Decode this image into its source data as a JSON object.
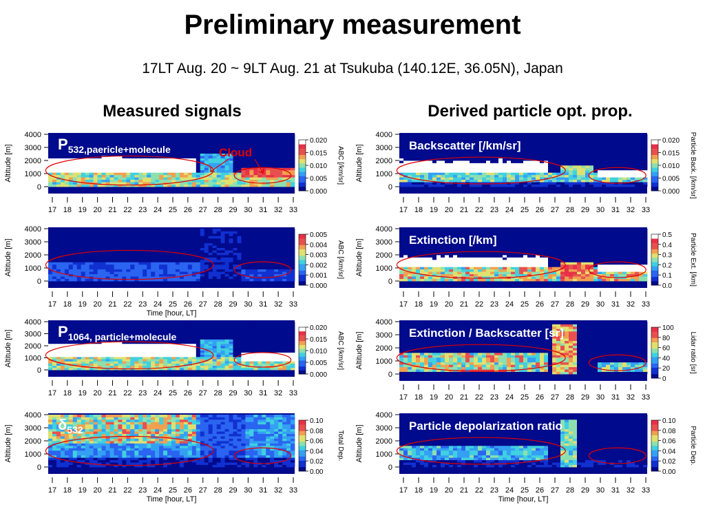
{
  "title": "Preliminary measurement",
  "subtitle": "17LT Aug. 20 ~ 9LT Aug. 21 at Tsukuba (140.12E, 36.05N), Japan",
  "left_heading": "Measured signals",
  "right_heading": "Derived particle opt. prop.",
  "cloud_annotation": "Cloud",
  "chart_data": [
    {
      "id": "p532",
      "type": "heatmap",
      "column": "left",
      "overlay_label": "P",
      "overlay_label_sub": "532,paericle+molecule",
      "xlabel": "",
      "ylabel": "Altitude [m]",
      "x_ticks": [
        "17",
        "18",
        "19",
        "20",
        "21",
        "22",
        "23",
        "24",
        "25",
        "26",
        "27",
        "28",
        "29",
        "30",
        "31",
        "32",
        "33"
      ],
      "y_ticks": [
        "0",
        "1000",
        "2000",
        "3000",
        "4000"
      ],
      "ylim": [
        0,
        4000
      ],
      "colorbar_label": "ABC [/km/sr]",
      "colorbar_ticks": [
        "0.000",
        "0.005",
        "0.010",
        "0.015",
        "0.020"
      ],
      "color_scale": "rainbow-white-max",
      "annotations": [
        "cloud ellipse 17-27 LT, 1000-2000 m",
        "cloud ellipse 30-33 LT, 500-1500 m"
      ]
    },
    {
      "id": "p532_clean",
      "type": "heatmap",
      "column": "left",
      "overlay_label": "",
      "overlay_label_sub": "",
      "xlabel": "Time [hour, LT]",
      "ylabel": "Altitude [m]",
      "x_ticks": [
        "17",
        "18",
        "19",
        "20",
        "21",
        "22",
        "23",
        "24",
        "25",
        "26",
        "27",
        "28",
        "29",
        "30",
        "31",
        "32",
        "33"
      ],
      "y_ticks": [
        "0",
        "1000",
        "2000",
        "3000",
        "4000"
      ],
      "ylim": [
        0,
        4000
      ],
      "colorbar_label": "ABC [/km/sr]",
      "colorbar_ticks": [
        "0.000",
        "0.001",
        "0.002",
        "0.003",
        "0.004",
        "0.005"
      ],
      "color_scale": "rainbow"
    },
    {
      "id": "p1064",
      "type": "heatmap",
      "column": "left",
      "overlay_label": "P",
      "overlay_label_sub": "1064, particle+molecule",
      "xlabel": "",
      "ylabel": "Altitude [m]",
      "x_ticks": [
        "17",
        "18",
        "19",
        "20",
        "21",
        "22",
        "23",
        "24",
        "25",
        "26",
        "27",
        "28",
        "29",
        "30",
        "31",
        "32",
        "33"
      ],
      "y_ticks": [
        "0",
        "1000",
        "2000",
        "3000",
        "4000"
      ],
      "ylim": [
        0,
        4000
      ],
      "colorbar_label": "ABC [/km/sr]",
      "colorbar_ticks": [
        "0.000",
        "0.005",
        "0.010",
        "0.015",
        "0.020"
      ],
      "color_scale": "rainbow-white-max"
    },
    {
      "id": "delta532",
      "type": "heatmap",
      "column": "left",
      "overlay_label": "δ",
      "overlay_label_sub": "532",
      "xlabel": "Time [hour, LT]",
      "ylabel": "Altitude [m]",
      "x_ticks": [
        "17",
        "18",
        "19",
        "20",
        "21",
        "22",
        "23",
        "24",
        "25",
        "26",
        "27",
        "28",
        "29",
        "30",
        "31",
        "32",
        "33"
      ],
      "y_ticks": [
        "0",
        "1000",
        "2000",
        "3000",
        "4000"
      ],
      "ylim": [
        0,
        4000
      ],
      "colorbar_label": "Total Dep.",
      "colorbar_ticks": [
        "0.00",
        "0.02",
        "0.04",
        "0.06",
        "0.08",
        "0.10"
      ],
      "color_scale": "rainbow"
    },
    {
      "id": "backscatter",
      "type": "heatmap",
      "column": "right",
      "overlay_label": "Backscatter [/km/sr]",
      "overlay_label_sub": "",
      "xlabel": "",
      "ylabel": "Altitude [m]",
      "x_ticks": [
        "17",
        "18",
        "19",
        "20",
        "21",
        "22",
        "23",
        "24",
        "25",
        "26",
        "27",
        "28",
        "29",
        "30",
        "31",
        "32",
        "33"
      ],
      "y_ticks": [
        "0",
        "1000",
        "2000",
        "3000",
        "4000"
      ],
      "ylim": [
        0,
        4000
      ],
      "colorbar_label": "Particle Back. [/km/sr]",
      "colorbar_ticks": [
        "0.000",
        "0.005",
        "0.010",
        "0.015",
        "0.020"
      ],
      "color_scale": "rainbow-white-max"
    },
    {
      "id": "extinction",
      "type": "heatmap",
      "column": "right",
      "overlay_label": "Extinction [/km]",
      "overlay_label_sub": "",
      "xlabel": "",
      "ylabel": "Altitude [m]",
      "x_ticks": [
        "17",
        "18",
        "19",
        "20",
        "21",
        "22",
        "23",
        "24",
        "25",
        "26",
        "27",
        "28",
        "29",
        "30",
        "31",
        "32",
        "33"
      ],
      "y_ticks": [
        "0",
        "1000",
        "2000",
        "3000",
        "4000"
      ],
      "ylim": [
        0,
        4000
      ],
      "colorbar_label": "Particle Ext. [/km]",
      "colorbar_ticks": [
        "0.0",
        "0.1",
        "0.2",
        "0.3",
        "0.4",
        "0.5"
      ],
      "color_scale": "rainbow-white-max"
    },
    {
      "id": "lidar_ratio",
      "type": "heatmap",
      "column": "right",
      "overlay_label": "Extinction / Backscatter [sr]",
      "overlay_label_sub": "",
      "xlabel": "",
      "ylabel": "Altitude [m]",
      "x_ticks": [
        "17",
        "18",
        "19",
        "20",
        "21",
        "22",
        "23",
        "24",
        "25",
        "26",
        "27",
        "28",
        "29",
        "30",
        "31",
        "32",
        "33"
      ],
      "y_ticks": [
        "0",
        "1000",
        "2000",
        "3000",
        "4000"
      ],
      "ylim": [
        0,
        4000
      ],
      "colorbar_label": "Lidar ratio [sr]",
      "colorbar_ticks": [
        "0",
        "20",
        "40",
        "60",
        "80",
        "100"
      ],
      "color_scale": "rainbow"
    },
    {
      "id": "particle_dep",
      "type": "heatmap",
      "column": "right",
      "overlay_label": "Particle depolarization ratio",
      "overlay_label_sub": "",
      "xlabel": "Time [hour, LT]",
      "ylabel": "Altitude [m]",
      "x_ticks": [
        "17",
        "18",
        "19",
        "20",
        "21",
        "22",
        "23",
        "24",
        "25",
        "26",
        "27",
        "28",
        "29",
        "30",
        "31",
        "32",
        "33"
      ],
      "y_ticks": [
        "0",
        "1000",
        "2000",
        "3000",
        "4000"
      ],
      "ylim": [
        0,
        4000
      ],
      "colorbar_label": "Particle Dep.",
      "colorbar_ticks": [
        "0.00",
        "0.02",
        "0.04",
        "0.06",
        "0.08",
        "0.10"
      ],
      "color_scale": "rainbow"
    }
  ]
}
